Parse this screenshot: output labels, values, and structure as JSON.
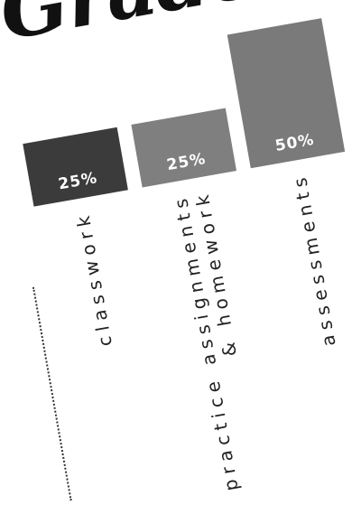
{
  "header": {
    "title_fragment": "Grade"
  },
  "chart_data": {
    "type": "bar",
    "categories": [
      "classwork",
      "practice assignments & homework",
      "assessments"
    ],
    "category_lines": [
      [
        "classwork"
      ],
      [
        "practice assignments",
        "& homework"
      ],
      [
        "assessments"
      ]
    ],
    "values": [
      25,
      25,
      50
    ],
    "data_labels": [
      "25%",
      "25%",
      "50%"
    ],
    "value_unit": "%",
    "ylim": [
      0,
      50
    ],
    "grid": false,
    "legend": "none",
    "colors": [
      "#3b3b3b",
      "#7f7f7f",
      "#7a7a7a"
    ],
    "label_color": "#ffffff",
    "text_color": "#222222",
    "title": "",
    "xlabel": "",
    "ylabel": ""
  }
}
